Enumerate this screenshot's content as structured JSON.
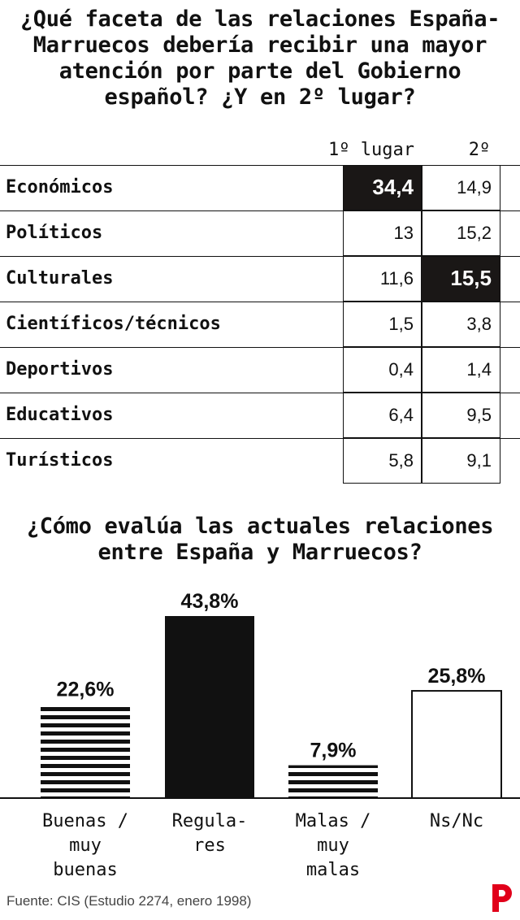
{
  "table": {
    "title": "¿Qué faceta de las relaciones España-Marruecos debería recibir una mayor atención por parte del Gobierno español? ¿Y en 2º lugar?",
    "columns": [
      "1º lugar",
      "2º"
    ],
    "rows": [
      {
        "label": "Económicos",
        "v1": "34,4",
        "v2": "14,9"
      },
      {
        "label": "Políticos",
        "v1": "13",
        "v2": "15,2"
      },
      {
        "label": "Culturales",
        "v1": "11,6",
        "v2": "15,5"
      },
      {
        "label": "Científicos/técnicos",
        "v1": "1,5",
        "v2": "3,8"
      },
      {
        "label": "Deportivos",
        "v1": "0,4",
        "v2": "1,4"
      },
      {
        "label": "Educativos",
        "v1": "6,4",
        "v2": "9,5"
      },
      {
        "label": "Turísticos",
        "v1": "5,8",
        "v2": "9,1"
      }
    ],
    "highlight": [
      {
        "row": 0,
        "col": 1
      },
      {
        "row": 2,
        "col": 2
      }
    ],
    "highlight_color": "#1a1716"
  },
  "chart_data": {
    "type": "bar",
    "title": "¿Cómo evalúa las actuales relaciones entre España y Marruecos?",
    "categories": [
      "Buenas / muy buenas",
      "Regulares",
      "Malas / muy malas",
      "Ns/Nc"
    ],
    "category_lines": [
      [
        "Buenas /",
        "muy",
        "buenas"
      ],
      [
        "Regula-",
        "res"
      ],
      [
        "Malas /",
        "muy",
        "malas"
      ],
      [
        "Ns/Nc"
      ]
    ],
    "values": [
      22.6,
      43.8,
      7.9,
      25.8
    ],
    "value_labels": [
      "22,6%",
      "43,8%",
      "7,9%",
      "25,8%"
    ],
    "styles": [
      "striped",
      "solid",
      "striped",
      "outline"
    ],
    "ylim": [
      0,
      43.8
    ],
    "grid": false,
    "bar_color": "#111111"
  },
  "footer": {
    "source": "Fuente: CIS (Estudio 2274, enero 1998)",
    "logo_icon": "p-logo-icon",
    "logo_color": "#e1001a"
  }
}
